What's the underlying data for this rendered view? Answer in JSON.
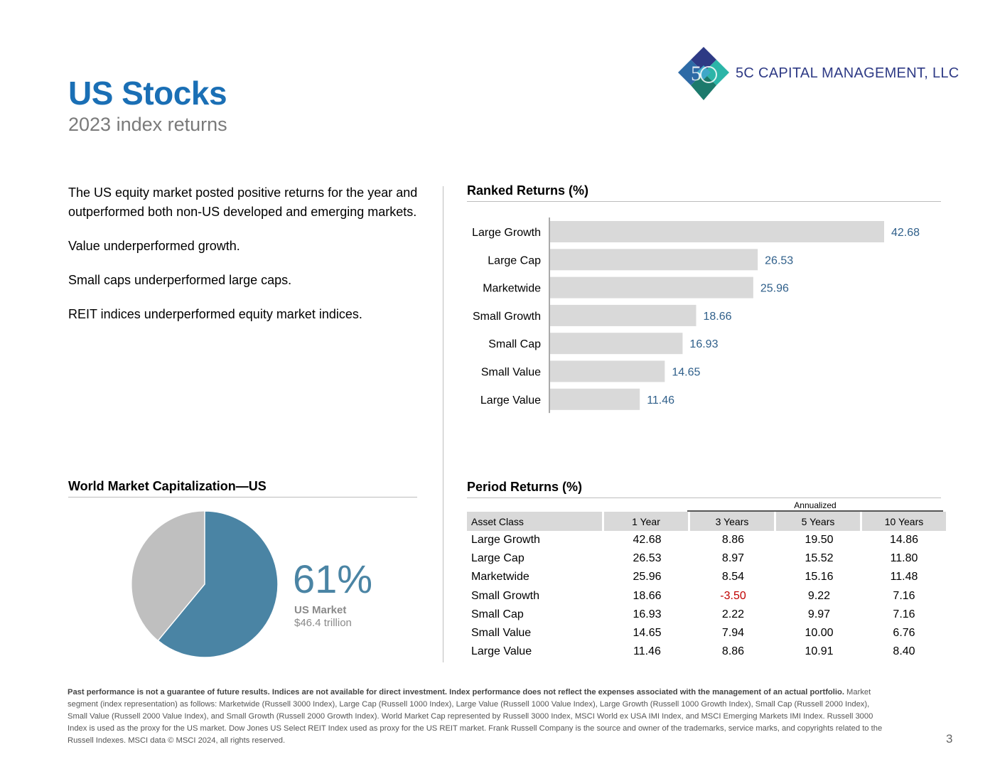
{
  "header": {
    "title": "US Stocks",
    "subtitle": "2023 index returns"
  },
  "logo": {
    "mark_icon": "5c-diamond-logo",
    "company": "5C CAPITAL MANAGEMENT, LLC"
  },
  "intro": {
    "paragraphs": [
      "The US equity market posted positive returns for the year and outperformed both non-US developed and emerging markets.",
      "Value underperformed growth.",
      "Small caps underperformed large caps.",
      "REIT indices underperformed equity market indices."
    ]
  },
  "ranked": {
    "title": "Ranked Returns (%)"
  },
  "chart_data": {
    "type": "bar",
    "orientation": "horizontal",
    "title": "Ranked Returns (%)",
    "categories": [
      "Large Growth",
      "Large Cap",
      "Marketwide",
      "Small Growth",
      "Small Cap",
      "Small Value",
      "Large Value"
    ],
    "values": [
      42.68,
      26.53,
      25.96,
      18.66,
      16.93,
      14.65,
      11.46
    ],
    "value_labels": [
      "42.68",
      "26.53",
      "25.96",
      "18.66",
      "16.93",
      "14.65",
      "11.46"
    ],
    "xlim": [
      0,
      42.68
    ],
    "grid": false,
    "bar_color": "#d9d9d9",
    "label_color": "#2f5f8a"
  },
  "world_cap": {
    "title": "World Market Capitalization—US",
    "percent_value": 61,
    "percent_text": "61%",
    "label": "US Market",
    "sub": "$46.4 trillion",
    "us_color": "#4a84a4",
    "rest_color": "#bfbfbf"
  },
  "period": {
    "title": "Period Returns (%)",
    "annualized_label": "Annualized",
    "headers": [
      "Asset Class",
      "1 Year",
      "3 Years",
      "5 Years",
      "10 Years"
    ],
    "rows": [
      [
        "Large Growth",
        "42.68",
        "8.86",
        "19.50",
        "14.86"
      ],
      [
        "Large Cap",
        "26.53",
        "8.97",
        "15.52",
        "11.80"
      ],
      [
        "Marketwide",
        "25.96",
        "8.54",
        "15.16",
        "11.48"
      ],
      [
        "Small Growth",
        "18.66",
        "-3.50",
        "9.22",
        "7.16"
      ],
      [
        "Small Cap",
        "16.93",
        "2.22",
        "9.97",
        "7.16"
      ],
      [
        "Small Value",
        "14.65",
        "7.94",
        "10.00",
        "6.76"
      ],
      [
        "Large Value",
        "11.46",
        "8.86",
        "10.91",
        "8.40"
      ]
    ],
    "negative_color": "#c00000"
  },
  "footer": {
    "disclaimer_bold": "Past performance is not a guarantee of future results. Indices are not available for direct investment. Index performance does not reflect the expenses associated with the management of an actual portfolio.",
    "disclaimer_text": "Market segment (index representation) as follows: Marketwide (Russell 3000 Index), Large Cap (Russell 1000 Index), Large Value (Russell 1000 Value Index), Large Growth (Russell 1000 Growth Index), Small Cap (Russell 2000 Index), Small Value (Russell 2000 Value Index), and Small Growth (Russell 2000 Growth Index). World Market Cap represented by Russell 3000 Index, MSCI World ex USA IMI Index, and MSCI Emerging Markets IMI Index. Russell 3000 Index is used as the proxy for the US market. Dow Jones US Select REIT Index used as proxy for the US REIT market. Frank Russell Company is the source and owner of the trademarks, service marks, and copyrights related to the Russell Indexes. MSCI data © MSCI 2024, all rights reserved.",
    "page_number": "3"
  }
}
